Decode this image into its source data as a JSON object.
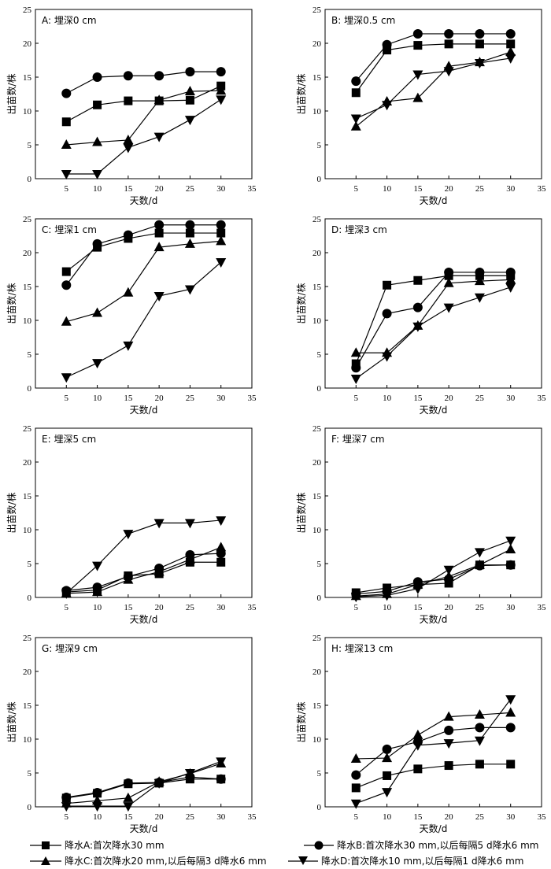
{
  "legend": {
    "entries": [
      {
        "series": "A",
        "label": "降水A:首次降水30 mm"
      },
      {
        "series": "B",
        "label": "降水B:首次降水30 mm,以后每隔5 d降水6 mm"
      },
      {
        "series": "C",
        "label": "降水C:首次降水20 mm,以后每隔3 d降水6 mm"
      },
      {
        "series": "D",
        "label": "降水D:首次降水10 mm,以后每隔1 d降水6 mm"
      }
    ]
  },
  "markers": {
    "A": "square",
    "B": "circle",
    "C": "triangle-up",
    "D": "triangle-down"
  },
  "chart_data": [
    {
      "type": "line",
      "panel": "A",
      "title": "A: 埋深0 cm",
      "xlabel": "天数/d",
      "ylabel": "出苗数/株",
      "xlim": [
        0,
        35
      ],
      "ylim": [
        0,
        25
      ],
      "xticks": [
        5,
        10,
        15,
        20,
        25,
        30,
        35
      ],
      "yticks": [
        0,
        5,
        10,
        15,
        20,
        25
      ],
      "x": [
        5,
        10,
        15,
        20,
        25,
        30
      ],
      "series": [
        {
          "key": "A",
          "values": [
            8.4,
            10.9,
            11.5,
            11.5,
            11.6,
            13.7
          ]
        },
        {
          "key": "B",
          "values": [
            12.6,
            15.0,
            15.2,
            15.2,
            15.8,
            15.8
          ]
        },
        {
          "key": "C",
          "values": [
            5.0,
            5.4,
            5.7,
            11.6,
            12.9,
            13.0
          ]
        },
        {
          "key": "D",
          "values": [
            0.7,
            0.7,
            4.6,
            6.2,
            8.7,
            11.7
          ]
        }
      ]
    },
    {
      "type": "line",
      "panel": "B",
      "title": "B: 埋深0.5 cm",
      "xlabel": "天数/d",
      "ylabel": "出苗数/株",
      "xlim": [
        0,
        35
      ],
      "ylim": [
        0,
        25
      ],
      "xticks": [
        5,
        10,
        15,
        20,
        25,
        30,
        35
      ],
      "yticks": [
        0,
        5,
        10,
        15,
        20,
        25
      ],
      "x": [
        5,
        10,
        15,
        20,
        25,
        30
      ],
      "series": [
        {
          "key": "A",
          "values": [
            12.7,
            19.0,
            19.7,
            19.9,
            19.9,
            19.9
          ]
        },
        {
          "key": "B",
          "values": [
            14.4,
            19.8,
            21.4,
            21.4,
            21.4,
            21.4
          ]
        },
        {
          "key": "C",
          "values": [
            7.7,
            11.4,
            11.9,
            16.6,
            17.2,
            18.7
          ]
        },
        {
          "key": "D",
          "values": [
            8.9,
            10.9,
            15.4,
            15.9,
            17.1,
            17.8
          ]
        }
      ]
    },
    {
      "type": "line",
      "panel": "C",
      "title": "C: 埋深1 cm",
      "xlabel": "天数/d",
      "ylabel": "出苗数/株",
      "xlim": [
        0,
        35
      ],
      "ylim": [
        0,
        25
      ],
      "xticks": [
        5,
        10,
        15,
        20,
        25,
        30,
        35
      ],
      "yticks": [
        0,
        5,
        10,
        15,
        20,
        25
      ],
      "x": [
        5,
        10,
        15,
        20,
        25,
        30
      ],
      "series": [
        {
          "key": "A",
          "values": [
            17.2,
            20.8,
            22.1,
            22.9,
            22.9,
            22.9
          ]
        },
        {
          "key": "B",
          "values": [
            15.2,
            21.3,
            22.6,
            24.1,
            24.1,
            24.1
          ]
        },
        {
          "key": "C",
          "values": [
            9.8,
            11.1,
            14.1,
            20.8,
            21.3,
            21.7
          ]
        },
        {
          "key": "D",
          "values": [
            1.6,
            3.7,
            6.3,
            13.6,
            14.6,
            18.6
          ]
        }
      ]
    },
    {
      "type": "line",
      "panel": "D",
      "title": "D: 埋深3 cm",
      "xlabel": "天数/d",
      "ylabel": "出苗数/株",
      "xlim": [
        0,
        35
      ],
      "ylim": [
        0,
        25
      ],
      "xticks": [
        5,
        10,
        15,
        20,
        25,
        30,
        35
      ],
      "yticks": [
        0,
        5,
        10,
        15,
        20,
        25
      ],
      "x": [
        5,
        10,
        15,
        20,
        25,
        30
      ],
      "series": [
        {
          "key": "A",
          "values": [
            3.6,
            15.2,
            15.9,
            16.6,
            16.6,
            16.6
          ]
        },
        {
          "key": "B",
          "values": [
            3.0,
            11.0,
            11.9,
            17.1,
            17.1,
            17.1
          ]
        },
        {
          "key": "C",
          "values": [
            5.2,
            5.2,
            9.2,
            15.5,
            15.8,
            16.0
          ]
        },
        {
          "key": "D",
          "values": [
            1.4,
            4.7,
            9.1,
            11.9,
            13.4,
            14.9
          ]
        }
      ]
    },
    {
      "type": "line",
      "panel": "E",
      "title": "E: 埋深5 cm",
      "xlabel": "天数/d",
      "ylabel": "出苗数/株",
      "xlim": [
        0,
        35
      ],
      "ylim": [
        0,
        25
      ],
      "xticks": [
        5,
        10,
        15,
        20,
        25,
        30,
        35
      ],
      "yticks": [
        0,
        5,
        10,
        15,
        20,
        25
      ],
      "x": [
        5,
        10,
        15,
        20,
        25,
        30
      ],
      "series": [
        {
          "key": "A",
          "values": [
            0.8,
            1.1,
            3.2,
            3.5,
            5.2,
            5.2
          ]
        },
        {
          "key": "B",
          "values": [
            1.0,
            1.5,
            3.1,
            4.3,
            6.3,
            6.5
          ]
        },
        {
          "key": "C",
          "values": [
            0.6,
            0.8,
            2.6,
            3.8,
            5.6,
            7.4
          ]
        },
        {
          "key": "D",
          "values": [
            0.6,
            4.7,
            9.4,
            11.0,
            11.0,
            11.4
          ]
        }
      ]
    },
    {
      "type": "line",
      "panel": "F",
      "title": "F: 埋深7 cm",
      "xlabel": "天数/d",
      "ylabel": "出苗数/株",
      "xlim": [
        0,
        35
      ],
      "ylim": [
        0,
        25
      ],
      "xticks": [
        5,
        10,
        15,
        20,
        25,
        30,
        35
      ],
      "yticks": [
        0,
        5,
        10,
        15,
        20,
        25
      ],
      "x": [
        5,
        10,
        15,
        20,
        25,
        30
      ],
      "series": [
        {
          "key": "A",
          "values": [
            0.7,
            1.4,
            1.9,
            2.1,
            4.8,
            4.8
          ]
        },
        {
          "key": "B",
          "values": [
            0.5,
            0.9,
            2.3,
            2.7,
            4.7,
            4.8
          ]
        },
        {
          "key": "C",
          "values": [
            0.2,
            0.5,
            1.9,
            3.1,
            4.8,
            7.1
          ]
        },
        {
          "key": "D",
          "values": [
            0.1,
            0.3,
            1.3,
            4.1,
            6.7,
            8.4
          ]
        }
      ]
    },
    {
      "type": "line",
      "panel": "G",
      "title": "G: 埋深9 cm",
      "xlabel": "天数/d",
      "ylabel": "出苗数/株",
      "xlim": [
        0,
        35
      ],
      "ylim": [
        0,
        25
      ],
      "xticks": [
        5,
        10,
        15,
        20,
        25,
        30,
        35
      ],
      "yticks": [
        0,
        5,
        10,
        15,
        20,
        25
      ],
      "x": [
        5,
        10,
        15,
        20,
        25,
        30
      ],
      "series": [
        {
          "key": "A",
          "values": [
            1.3,
            2.0,
            3.4,
            3.5,
            4.1,
            4.1
          ]
        },
        {
          "key": "B",
          "values": [
            1.4,
            2.1,
            3.5,
            3.6,
            4.4,
            4.1
          ]
        },
        {
          "key": "C",
          "values": [
            0.5,
            0.9,
            1.3,
            3.7,
            4.9,
            6.4
          ]
        },
        {
          "key": "D",
          "values": [
            0.1,
            0.1,
            0.1,
            3.5,
            5.0,
            6.7
          ]
        }
      ]
    },
    {
      "type": "line",
      "panel": "H",
      "title": "H: 埋深13 cm",
      "xlabel": "天数/d",
      "ylabel": "出苗数/株",
      "xlim": [
        0,
        35
      ],
      "ylim": [
        0,
        25
      ],
      "xticks": [
        5,
        10,
        15,
        20,
        25,
        30,
        35
      ],
      "yticks": [
        0,
        5,
        10,
        15,
        20,
        25
      ],
      "x": [
        5,
        10,
        15,
        20,
        25,
        30
      ],
      "series": [
        {
          "key": "A",
          "values": [
            2.8,
            4.6,
            5.6,
            6.1,
            6.3,
            6.3
          ]
        },
        {
          "key": "B",
          "values": [
            4.7,
            8.5,
            9.6,
            11.3,
            11.7,
            11.7
          ]
        },
        {
          "key": "C",
          "values": [
            7.1,
            7.2,
            10.6,
            13.3,
            13.6,
            13.9
          ]
        },
        {
          "key": "D",
          "values": [
            0.5,
            2.2,
            9.1,
            9.4,
            9.8,
            15.9
          ]
        }
      ]
    }
  ]
}
